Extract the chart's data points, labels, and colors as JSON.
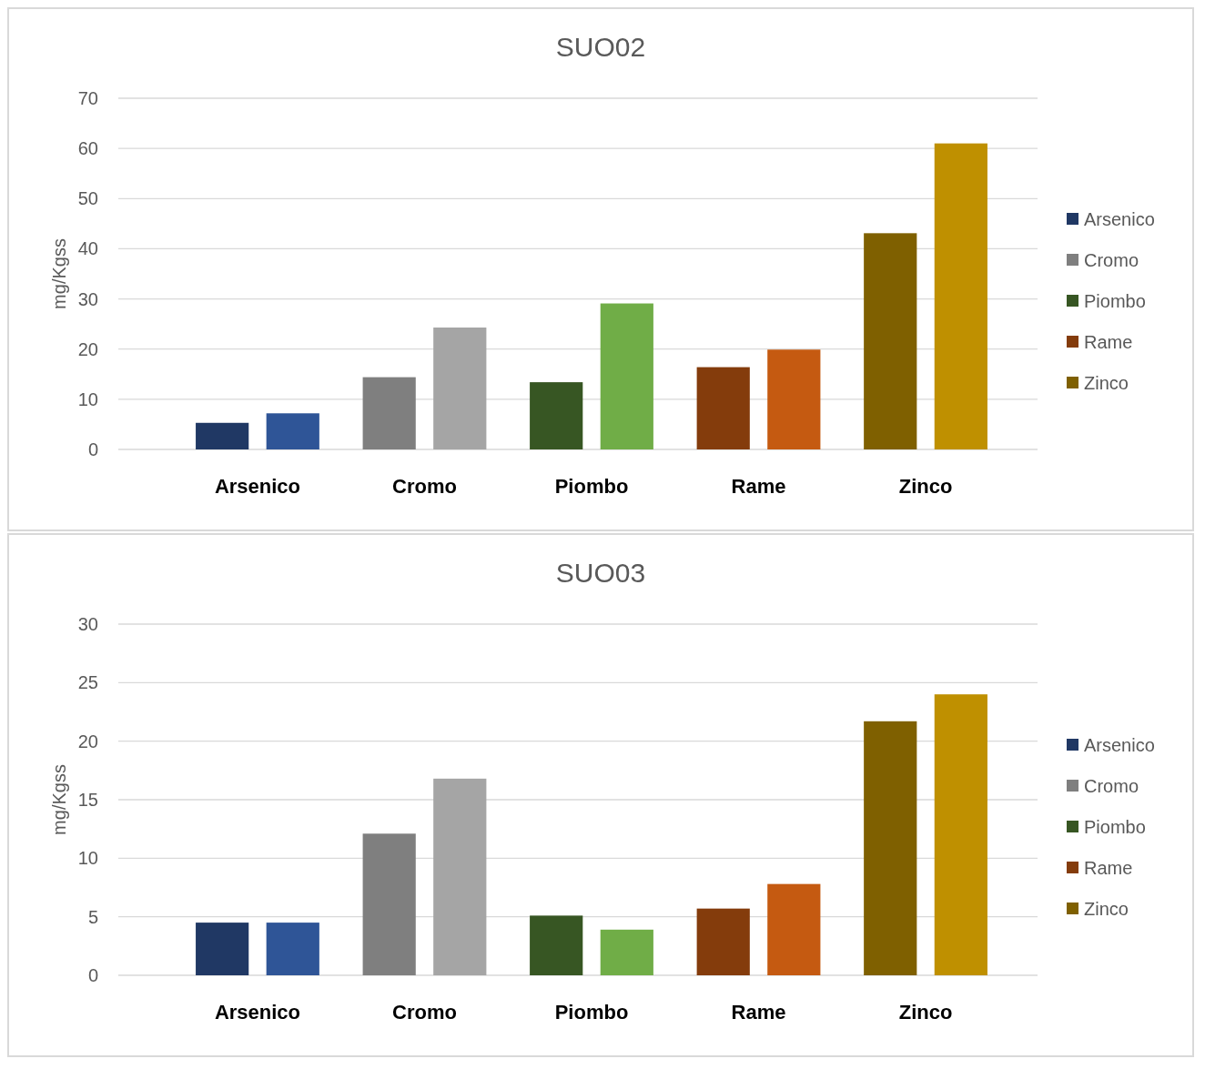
{
  "chart_data": [
    {
      "type": "bar",
      "title": "SUO02",
      "ylabel": "mg/Kgss",
      "categories": [
        "Arsenico",
        "Cromo",
        "Piombo",
        "Rame",
        "Zinco"
      ],
      "series": [
        {
          "name": "Arsenico",
          "color": "#203864",
          "values": [
            5.3,
            null,
            null,
            null,
            null
          ]
        },
        {
          "color": "#2f5597",
          "values": [
            7.2,
            null,
            null,
            null,
            null
          ]
        },
        {
          "name": "Cromo",
          "color": "#7f7f7f",
          "values": [
            null,
            14.4,
            null,
            null,
            null
          ]
        },
        {
          "color": "#a5a5a5",
          "values": [
            null,
            24.3,
            null,
            null,
            null
          ]
        },
        {
          "name": "Piombo",
          "color": "#375623",
          "values": [
            null,
            null,
            13.4,
            null,
            null
          ]
        },
        {
          "color": "#70ad47",
          "values": [
            null,
            null,
            29.1,
            null,
            null
          ]
        },
        {
          "name": "Rame",
          "color": "#843c0c",
          "values": [
            null,
            null,
            null,
            16.4,
            null
          ]
        },
        {
          "color": "#c55a11",
          "values": [
            null,
            null,
            null,
            19.9,
            null
          ]
        },
        {
          "name": "Zinco",
          "color": "#7f6000",
          "values": [
            null,
            null,
            null,
            null,
            43.1
          ]
        },
        {
          "color": "#bf9000",
          "values": [
            null,
            null,
            null,
            null,
            61.0
          ]
        }
      ],
      "ylim": [
        0,
        70
      ],
      "yticks": [
        0,
        10,
        20,
        30,
        40,
        50,
        60,
        70
      ],
      "grid": "y",
      "legend": "right"
    },
    {
      "type": "bar",
      "title": "SUO03",
      "ylabel": "mg/Kgss",
      "categories": [
        "Arsenico",
        "Cromo",
        "Piombo",
        "Rame",
        "Zinco"
      ],
      "series": [
        {
          "name": "Arsenico",
          "color": "#203864",
          "values": [
            4.5,
            null,
            null,
            null,
            null
          ]
        },
        {
          "color": "#2f5597",
          "values": [
            4.5,
            null,
            null,
            null,
            null
          ]
        },
        {
          "name": "Cromo",
          "color": "#7f7f7f",
          "values": [
            null,
            12.1,
            null,
            null,
            null
          ]
        },
        {
          "color": "#a5a5a5",
          "values": [
            null,
            16.8,
            null,
            null,
            null
          ]
        },
        {
          "name": "Piombo",
          "color": "#375623",
          "values": [
            null,
            null,
            5.1,
            null,
            null
          ]
        },
        {
          "color": "#70ad47",
          "values": [
            null,
            null,
            3.9,
            null,
            null
          ]
        },
        {
          "name": "Rame",
          "color": "#843c0c",
          "values": [
            null,
            null,
            null,
            5.7,
            null
          ]
        },
        {
          "color": "#c55a11",
          "values": [
            null,
            null,
            null,
            7.8,
            null
          ]
        },
        {
          "name": "Zinco",
          "color": "#7f6000",
          "values": [
            null,
            null,
            null,
            null,
            21.7
          ]
        },
        {
          "color": "#bf9000",
          "values": [
            null,
            null,
            null,
            null,
            24.0
          ]
        }
      ],
      "ylim": [
        0,
        30
      ],
      "yticks": [
        0,
        5,
        10,
        15,
        20,
        25,
        30
      ],
      "grid": "y",
      "legend": "right"
    }
  ]
}
